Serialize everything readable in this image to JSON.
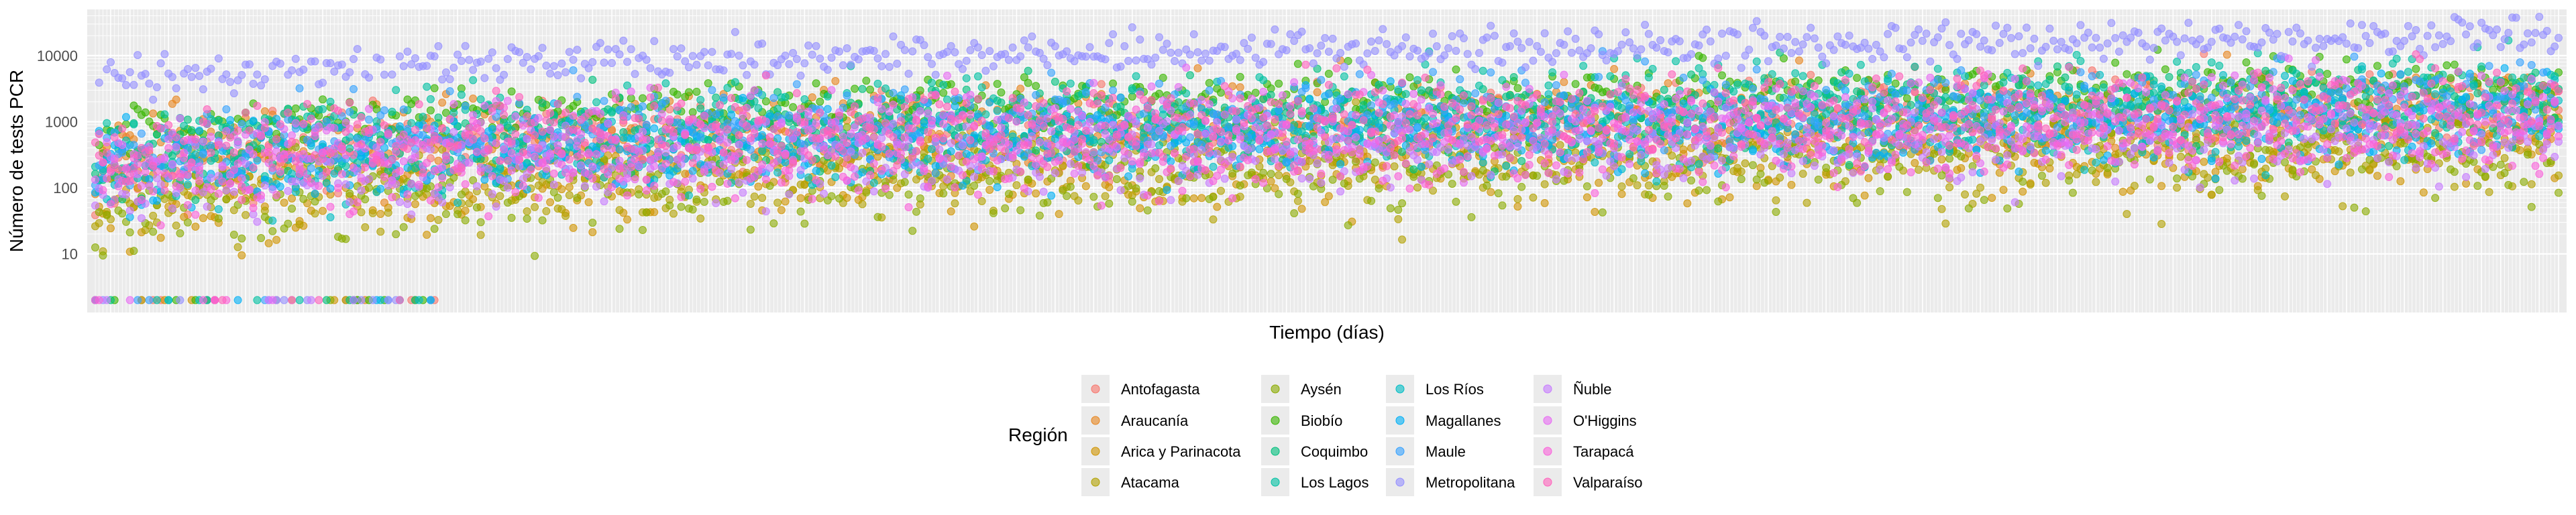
{
  "chart_data": {
    "type": "scatter",
    "title": "",
    "xlabel": "Tiempo (días)",
    "ylabel": "Número de tests PCR",
    "y_scale": "log10",
    "ylim": [
      1.3,
      50000
    ],
    "y_ticks": [
      "10",
      "100",
      "1000",
      "10000"
    ],
    "y_tick_values": [
      10,
      100,
      1000,
      10000
    ],
    "x_tick_labels": "none",
    "x_range_days": [
      1,
      640
    ],
    "grid": true,
    "panel_background": "#ebebeb",
    "legend": {
      "title": "Región",
      "placement": "bottom",
      "columns": 4
    },
    "point_alpha": 0.6,
    "below_range_value": 2,
    "series": [
      {
        "name": "Antofagasta",
        "color": "#F8766D",
        "base_log": [
          2.2,
          3.2
        ],
        "noise": 0.3,
        "seed": 11
      },
      {
        "name": "Araucanía",
        "color": "#E7851E",
        "base_log": [
          2.5,
          3.2
        ],
        "noise": 0.3,
        "seed": 12
      },
      {
        "name": "Arica y Parinacota",
        "color": "#D09400",
        "base_log": [
          1.6,
          2.6
        ],
        "noise": 0.3,
        "seed": 13
      },
      {
        "name": "Atacama",
        "color": "#B2A100",
        "base_log": [
          1.7,
          2.6
        ],
        "noise": 0.35,
        "seed": 14
      },
      {
        "name": "Aysén",
        "color": "#8BAB00",
        "base_log": [
          1.6,
          2.6
        ],
        "noise": 0.35,
        "seed": 15
      },
      {
        "name": "Biobío",
        "color": "#39B600",
        "base_log": [
          2.8,
          3.55
        ],
        "noise": 0.2,
        "seed": 16
      },
      {
        "name": "Coquimbo",
        "color": "#00BF7D",
        "base_log": [
          2.4,
          3.3
        ],
        "noise": 0.3,
        "seed": 17
      },
      {
        "name": "Los Lagos",
        "color": "#00C1A3",
        "base_log": [
          2.5,
          3.5
        ],
        "noise": 0.3,
        "seed": 18
      },
      {
        "name": "Los Ríos",
        "color": "#00BDC4",
        "base_log": [
          2.0,
          3.1
        ],
        "noise": 0.3,
        "seed": 19
      },
      {
        "name": "Magallanes",
        "color": "#00B0F6",
        "base_log": [
          2.2,
          3.0
        ],
        "noise": 0.3,
        "seed": 20
      },
      {
        "name": "Maule",
        "color": "#35A2FF",
        "base_log": [
          2.5,
          3.3
        ],
        "noise": 0.3,
        "seed": 21
      },
      {
        "name": "Metropolitana",
        "color": "#9590FF",
        "base_log": [
          3.6,
          4.3
        ],
        "noise": 0.12,
        "seed": 22
      },
      {
        "name": "Ñuble",
        "color": "#C77CFF",
        "base_log": [
          2.0,
          2.8
        ],
        "noise": 0.3,
        "seed": 23
      },
      {
        "name": "O'Higgins",
        "color": "#E76BF3",
        "base_log": [
          2.4,
          3.2
        ],
        "noise": 0.3,
        "seed": 24
      },
      {
        "name": "Tarapacá",
        "color": "#FA62DB",
        "base_log": [
          2.0,
          2.8
        ],
        "noise": 0.3,
        "seed": 25
      },
      {
        "name": "Valparaíso",
        "color": "#FF62BC",
        "base_log": [
          2.5,
          3.3
        ],
        "noise": 0.3,
        "seed": 26
      }
    ]
  }
}
